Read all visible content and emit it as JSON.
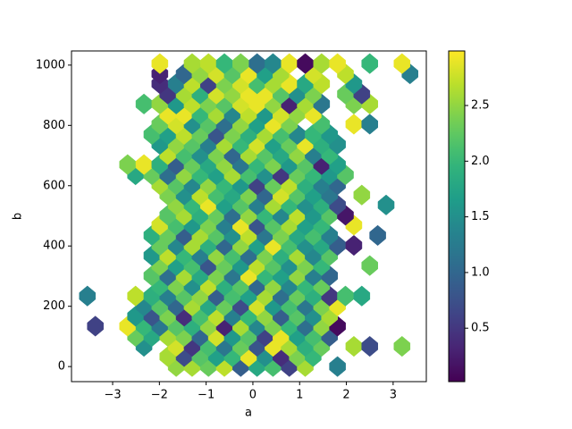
{
  "chart_data": {
    "type": "hexbin",
    "x_label": "a",
    "y_label": "b",
    "xlim": [
      -3.88,
      3.71
    ],
    "ylim": [
      -50,
      1047
    ],
    "xticks": [
      {
        "value": -3,
        "label": "−3"
      },
      {
        "value": -2,
        "label": "−2"
      },
      {
        "value": -1,
        "label": "−1"
      },
      0,
      1,
      2,
      3
    ],
    "yticks": [
      0,
      200,
      400,
      600,
      800,
      1000
    ],
    "colormap": "viridis",
    "clim": [
      0.02,
      2.99
    ],
    "cticks": [
      0.5,
      {
        "value": 1,
        "label": "1.0"
      },
      1.5,
      {
        "value": 2,
        "label": "2.0"
      },
      2.5
    ],
    "hex_width": 0.345,
    "hex_height": 67,
    "rows": [
      {
        "y": 0,
        "x": [
          -1.64,
          -1.3,
          -0.95,
          -0.61,
          -0.26,
          0.09,
          0.43,
          0.78,
          1.12,
          1.81
        ],
        "values": [
          2.5,
          2.6,
          2.3,
          2.7,
          0.9,
          1.8,
          2.1,
          0.6,
          2.6,
          1.3
        ]
      },
      {
        "y": 33,
        "x": [
          -1.82,
          -1.47,
          -1.13,
          -0.78,
          -0.44,
          -0.09,
          0.26,
          0.6,
          0.95,
          1.29
        ],
        "values": [
          2.6,
          0.7,
          2.2,
          1.7,
          2.0,
          2.9,
          1.5,
          0.4,
          2.4,
          2.0
        ]
      },
      {
        "y": 67,
        "x": [
          -2.33,
          -1.64,
          -1.3,
          -0.95,
          -0.61,
          -0.26,
          0.09,
          0.43,
          0.78,
          1.12,
          1.47,
          2.16,
          2.5,
          3.19
        ],
        "values": [
          1.5,
          2.8,
          0.5,
          2.1,
          1.2,
          2.3,
          0.8,
          2.9,
          2.6,
          1.9,
          2.3,
          2.6,
          0.7,
          2.4
        ]
      },
      {
        "y": 100,
        "x": [
          -2.51,
          -2.16,
          -1.82,
          -1.47,
          -1.13,
          -0.78,
          -0.44,
          -0.09,
          0.26,
          0.6,
          0.95,
          1.29,
          1.64
        ],
        "values": [
          2.3,
          1.8,
          2.6,
          2.4,
          1.0,
          2.8,
          1.6,
          2.2,
          0.6,
          2.9,
          1.7,
          2.1,
          0.9
        ]
      },
      {
        "y": 134,
        "x": [
          -3.37,
          -2.68,
          -2.33,
          -1.99,
          -1.64,
          -1.3,
          -0.95,
          -0.61,
          -0.26,
          0.09,
          0.43,
          0.78,
          1.12,
          1.47,
          1.81
        ],
        "values": [
          0.6,
          2.9,
          2.0,
          1.2,
          2.2,
          1.9,
          2.5,
          0.3,
          2.6,
          1.4,
          2.4,
          2.0,
          1.1,
          2.5,
          0.1
        ]
      },
      {
        "y": 167,
        "x": [
          -2.51,
          -2.16,
          -1.82,
          -1.47,
          -1.13,
          -0.78,
          -0.44,
          -0.09,
          0.26,
          0.6,
          0.95,
          1.29,
          1.64
        ],
        "values": [
          1.6,
          0.8,
          2.4,
          0.4,
          2.1,
          2.7,
          1.3,
          2.0,
          2.5,
          0.9,
          2.2,
          1.5,
          2.6
        ]
      },
      {
        "y": 201,
        "x": [
          -2.33,
          -1.99,
          -1.64,
          -1.3,
          -0.95,
          -0.61,
          -0.26,
          0.09,
          0.43,
          0.78,
          1.12,
          1.47,
          1.81
        ],
        "values": [
          1.4,
          2.2,
          1.0,
          2.6,
          1.8,
          2.3,
          0.7,
          2.8,
          1.6,
          2.1,
          1.2,
          2.4,
          2.9
        ]
      },
      {
        "y": 234,
        "x": [
          -3.54,
          -2.51,
          -2.16,
          -1.82,
          -1.47,
          -1.13,
          -0.78,
          -0.44,
          -0.09,
          0.26,
          0.6,
          0.95,
          1.29,
          1.64,
          1.98,
          2.33
        ],
        "values": [
          1.3,
          2.7,
          1.9,
          1.3,
          2.2,
          2.5,
          0.9,
          2.1,
          1.7,
          2.6,
          1.1,
          2.3,
          1.9,
          0.5,
          2.1,
          1.8
        ]
      },
      {
        "y": 268,
        "x": [
          -1.99,
          -1.64,
          -1.3,
          -0.95,
          -0.61,
          -0.26,
          0.09,
          0.43,
          0.78,
          1.12,
          1.47
        ],
        "values": [
          2.0,
          2.4,
          1.5,
          2.7,
          1.9,
          2.2,
          1.0,
          2.5,
          1.4,
          2.0,
          2.3
        ]
      },
      {
        "y": 301,
        "x": [
          -2.16,
          -1.82,
          -1.47,
          -1.13,
          -0.78,
          -0.44,
          -0.09,
          0.26,
          0.6,
          0.95,
          1.29,
          1.64
        ],
        "values": [
          2.2,
          1.1,
          2.6,
          1.8,
          2.4,
          1.2,
          2.9,
          2.0,
          1.7,
          2.5,
          1.3,
          1.0
        ]
      },
      {
        "y": 335,
        "x": [
          -1.99,
          -1.64,
          -1.3,
          -0.95,
          -0.61,
          -0.26,
          0.09,
          0.43,
          0.78,
          1.12,
          1.47,
          2.5
        ],
        "values": [
          2.4,
          1.7,
          2.1,
          0.8,
          2.3,
          1.6,
          2.7,
          2.2,
          1.5,
          2.4,
          2.0,
          2.3
        ]
      },
      {
        "y": 368,
        "x": [
          -2.16,
          -1.82,
          -1.47,
          -1.13,
          -0.78,
          -0.44,
          -0.09,
          0.26,
          0.6,
          0.95,
          1.29,
          1.64
        ],
        "values": [
          1.6,
          2.7,
          2.0,
          1.3,
          2.5,
          2.1,
          1.1,
          2.4,
          1.9,
          2.6,
          1.4,
          2.2
        ]
      },
      {
        "y": 402,
        "x": [
          -1.99,
          -1.64,
          -1.3,
          -0.95,
          -0.61,
          -0.26,
          0.09,
          0.43,
          0.78,
          1.12,
          1.47,
          1.81,
          2.16
        ],
        "values": [
          2.3,
          1.4,
          2.6,
          1.9,
          1.0,
          2.5,
          1.7,
          2.9,
          2.1,
          1.5,
          1.8,
          0.9,
          0.3
        ]
      },
      {
        "y": 435,
        "x": [
          -2.16,
          -1.82,
          -1.47,
          -1.13,
          -0.78,
          -0.44,
          -0.09,
          0.26,
          0.6,
          0.95,
          1.29,
          1.64,
          2.67
        ],
        "values": [
          1.9,
          2.3,
          0.9,
          2.6,
          2.2,
          1.5,
          2.7,
          1.2,
          2.4,
          1.8,
          2.1,
          1.3,
          1.0
        ]
      },
      {
        "y": 469,
        "x": [
          -1.99,
          -1.64,
          -1.3,
          -0.95,
          -0.61,
          -0.26,
          0.09,
          0.43,
          0.78,
          1.12,
          1.47,
          2.16
        ],
        "values": [
          2.8,
          2.1,
          1.6,
          2.4,
          1.3,
          2.9,
          0.8,
          2.2,
          2.6,
          1.7,
          2.0,
          2.9
        ]
      },
      {
        "y": 502,
        "x": [
          -1.82,
          -1.47,
          -1.13,
          -0.78,
          -0.44,
          -0.09,
          0.26,
          0.6,
          0.95,
          1.29,
          1.64,
          1.98
        ],
        "values": [
          2.2,
          2.6,
          1.9,
          2.3,
          1.1,
          2.5,
          2.0,
          1.4,
          2.7,
          1.6,
          2.2,
          0.2
        ]
      },
      {
        "y": 536,
        "x": [
          -1.64,
          -1.3,
          -0.95,
          -0.61,
          -0.26,
          0.09,
          0.43,
          0.78,
          1.12,
          1.47,
          1.81,
          2.85
        ],
        "values": [
          2.5,
          2.0,
          2.9,
          1.7,
          2.2,
          1.3,
          2.6,
          2.0,
          1.5,
          1.9,
          0.7,
          1.5
        ]
      },
      {
        "y": 569,
        "x": [
          -1.82,
          -1.47,
          -1.13,
          -0.78,
          -0.44,
          -0.09,
          0.26,
          0.6,
          0.95,
          1.29,
          1.64,
          2.33
        ],
        "values": [
          2.4,
          1.5,
          2.7,
          2.1,
          1.8,
          2.4,
          1.0,
          2.8,
          2.2,
          1.7,
          1.2,
          2.5
        ]
      },
      {
        "y": 603,
        "x": [
          -1.99,
          -1.64,
          -1.3,
          -0.95,
          -0.61,
          -0.26,
          0.09,
          0.43,
          0.78,
          1.12,
          1.47,
          1.81
        ],
        "values": [
          2.6,
          2.2,
          1.4,
          2.5,
          2.0,
          1.6,
          0.6,
          2.3,
          2.7,
          1.9,
          1.3,
          1.0
        ]
      },
      {
        "y": 636,
        "x": [
          -2.51,
          -2.16,
          -1.82,
          -1.47,
          -1.13,
          -0.78,
          -0.44,
          -0.09,
          0.26,
          0.6,
          0.95,
          1.29,
          1.64,
          1.98
        ],
        "values": [
          1.8,
          2.3,
          1.1,
          2.5,
          2.0,
          1.7,
          2.6,
          2.1,
          1.5,
          0.5,
          2.3,
          2.0,
          1.6,
          2.2
        ]
      },
      {
        "y": 670,
        "x": [
          -2.68,
          -2.33,
          -1.99,
          -1.64,
          -1.3,
          -0.95,
          -0.61,
          -0.26,
          0.09,
          0.43,
          0.78,
          1.12,
          1.47,
          1.81
        ],
        "values": [
          2.4,
          2.9,
          1.9,
          0.9,
          2.3,
          1.8,
          2.5,
          1.2,
          2.0,
          2.4,
          1.6,
          2.2,
          0.3,
          1.7
        ]
      },
      {
        "y": 703,
        "x": [
          -1.82,
          -1.47,
          -1.13,
          -0.78,
          -0.44,
          -0.09,
          0.26,
          0.6,
          0.95,
          1.29,
          1.64
        ],
        "values": [
          2.7,
          2.1,
          1.5,
          2.4,
          1.0,
          2.6,
          2.2,
          1.8,
          2.5,
          1.3,
          2.0
        ]
      },
      {
        "y": 737,
        "x": [
          -1.99,
          -1.64,
          -1.3,
          -0.95,
          -0.61,
          -0.26,
          0.09,
          0.43,
          0.78,
          1.12,
          1.47,
          1.81
        ],
        "values": [
          1.6,
          2.5,
          2.2,
          1.3,
          2.6,
          2.0,
          2.8,
          1.7,
          2.3,
          2.9,
          1.9,
          1.5
        ]
      },
      {
        "y": 770,
        "x": [
          -2.16,
          -1.82,
          -1.47,
          -1.13,
          -0.78,
          -0.44,
          -0.09,
          0.26,
          0.6,
          0.95,
          1.29,
          1.64
        ],
        "values": [
          2.1,
          1.7,
          2.7,
          2.3,
          0.8,
          2.4,
          1.9,
          2.6,
          2.1,
          1.4,
          2.0,
          1.6
        ]
      },
      {
        "y": 804,
        "x": [
          -1.99,
          -1.64,
          -1.3,
          -0.95,
          -0.61,
          -0.26,
          0.09,
          0.43,
          0.78,
          1.47,
          2.16,
          2.5
        ],
        "values": [
          2.3,
          2.8,
          1.5,
          2.2,
          1.1,
          2.5,
          1.7,
          2.9,
          2.4,
          2.1,
          2.9,
          1.3
        ]
      },
      {
        "y": 837,
        "x": [
          -1.82,
          -1.47,
          -1.13,
          -0.78,
          -0.44,
          -0.09,
          0.26,
          0.6,
          0.95,
          1.29
        ],
        "values": [
          2.9,
          2.9,
          2.0,
          2.6,
          1.4,
          2.7,
          1.6,
          2.8,
          2.5,
          2.9
        ]
      },
      {
        "y": 871,
        "x": [
          -2.33,
          -1.99,
          -1.64,
          -1.3,
          -0.95,
          -0.61,
          -0.26,
          0.09,
          0.43,
          0.78,
          1.12,
          1.47,
          2.16,
          2.5
        ],
        "values": [
          2.1,
          2.5,
          1.6,
          2.7,
          2.4,
          2.2,
          2.8,
          2.9,
          2.5,
          0.3,
          2.6,
          1.2,
          2.4,
          2.6
        ]
      },
      {
        "y": 904,
        "x": [
          -1.82,
          -1.47,
          -1.13,
          -0.78,
          -0.44,
          -0.09,
          0.26,
          0.6,
          0.95,
          1.29,
          1.98,
          2.33
        ],
        "values": [
          0.5,
          2.6,
          1.9,
          2.8,
          2.5,
          2.9,
          2.9,
          2.2,
          1.5,
          2.4,
          2.3,
          0.6
        ]
      },
      {
        "y": 938,
        "x": [
          -1.99,
          -1.64,
          -1.3,
          -0.95,
          -0.61,
          -0.26,
          0.09,
          0.43,
          0.78,
          1.12,
          1.47,
          2.16
        ],
        "values": [
          0.4,
          1.3,
          2.7,
          0.6,
          2.4,
          2.8,
          2.1,
          2.6,
          2.9,
          1.8,
          2.7,
          1.6
        ]
      },
      {
        "y": 971,
        "x": [
          -1.99,
          -1.47,
          -1.13,
          -0.78,
          -0.44,
          -0.09,
          0.26,
          0.6,
          1.29,
          1.98,
          3.36
        ],
        "values": [
          0.3,
          1.0,
          2.5,
          2.8,
          2.2,
          2.9,
          1.7,
          2.6,
          2.8,
          2.7,
          1.3
        ]
      },
      {
        "y": 1005,
        "x": [
          -1.99,
          -1.3,
          -0.95,
          -0.61,
          -0.26,
          0.09,
          0.43,
          0.78,
          1.12,
          1.47,
          1.81,
          2.5,
          3.19
        ],
        "values": [
          2.9,
          2.6,
          2.7,
          2.0,
          2.4,
          1.1,
          1.4,
          2.9,
          0.1,
          2.6,
          2.9,
          2.0,
          2.9
        ]
      }
    ]
  }
}
